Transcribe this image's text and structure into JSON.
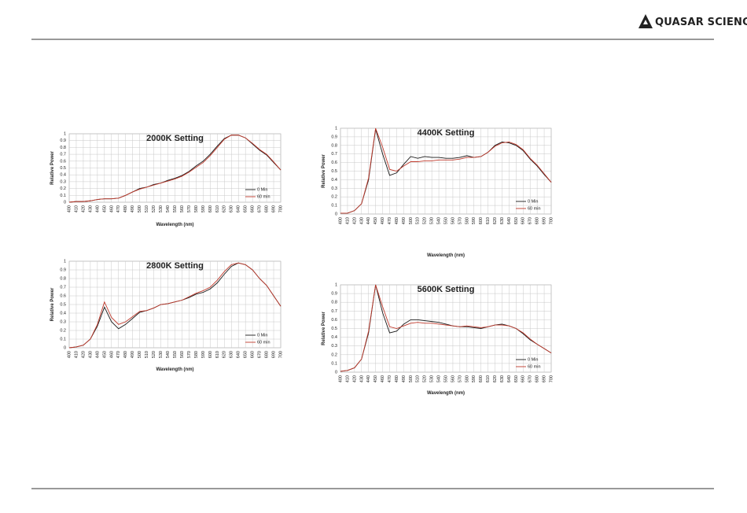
{
  "header": {
    "brand": "QUASAR SCIENCE"
  },
  "chart_data": [
    {
      "type": "line",
      "title": "2000K Setting",
      "y_label": "Relative Power",
      "x_label": "Wavelength (nm)",
      "x": [
        400,
        410,
        420,
        430,
        440,
        450,
        460,
        470,
        480,
        490,
        500,
        510,
        520,
        530,
        540,
        550,
        560,
        570,
        580,
        590,
        600,
        610,
        620,
        630,
        640,
        650,
        660,
        670,
        680,
        690,
        700
      ],
      "xlim": [
        400,
        700
      ],
      "xticks": [
        400,
        410,
        420,
        430,
        440,
        450,
        460,
        470,
        480,
        490,
        500,
        510,
        520,
        530,
        540,
        550,
        560,
        570,
        580,
        590,
        600,
        610,
        620,
        630,
        640,
        650,
        660,
        670,
        680,
        690,
        700
      ],
      "ylim": [
        0,
        1
      ],
      "yticks": [
        0,
        0.1,
        0.2,
        0.3,
        0.4,
        0.5,
        0.6,
        0.7,
        0.8,
        0.9,
        1
      ],
      "grid": true,
      "legend": "lower right",
      "series": [
        {
          "name": "0 Min",
          "color": "#1a1a1a",
          "values": [
            0,
            0.01,
            0.01,
            0.02,
            0.04,
            0.05,
            0.05,
            0.06,
            0.1,
            0.15,
            0.2,
            0.22,
            0.26,
            0.28,
            0.32,
            0.35,
            0.39,
            0.45,
            0.53,
            0.6,
            0.7,
            0.82,
            0.93,
            0.98,
            0.98,
            0.94,
            0.85,
            0.76,
            0.69,
            0.58,
            0.47
          ]
        },
        {
          "name": "60 min",
          "color": "#c0392b",
          "values": [
            0,
            0.01,
            0.01,
            0.02,
            0.04,
            0.05,
            0.05,
            0.06,
            0.1,
            0.15,
            0.19,
            0.22,
            0.25,
            0.28,
            0.31,
            0.34,
            0.38,
            0.44,
            0.51,
            0.58,
            0.68,
            0.8,
            0.92,
            0.98,
            0.98,
            0.94,
            0.86,
            0.77,
            0.7,
            0.59,
            0.47
          ]
        }
      ]
    },
    {
      "type": "line",
      "title": "2800K Setting",
      "y_label": "Relative Power",
      "x_label": "Wavelength (nm)",
      "x": [
        400,
        410,
        420,
        430,
        440,
        450,
        460,
        470,
        480,
        490,
        500,
        510,
        520,
        530,
        540,
        550,
        560,
        570,
        580,
        590,
        600,
        610,
        620,
        630,
        640,
        650,
        660,
        670,
        680,
        690,
        700
      ],
      "xlim": [
        400,
        700
      ],
      "xticks": [
        400,
        410,
        420,
        430,
        440,
        450,
        460,
        470,
        480,
        490,
        500,
        510,
        520,
        530,
        540,
        550,
        560,
        570,
        580,
        590,
        600,
        610,
        620,
        630,
        640,
        650,
        660,
        670,
        680,
        690,
        700
      ],
      "ylim": [
        0,
        1
      ],
      "yticks": [
        0,
        0.1,
        0.2,
        0.3,
        0.4,
        0.5,
        0.6,
        0.7,
        0.8,
        0.9,
        1
      ],
      "grid": true,
      "legend": "lower right",
      "series": [
        {
          "name": "0 Min",
          "color": "#1a1a1a",
          "values": [
            0,
            0.01,
            0.03,
            0.1,
            0.25,
            0.47,
            0.3,
            0.22,
            0.27,
            0.34,
            0.41,
            0.43,
            0.46,
            0.5,
            0.51,
            0.53,
            0.55,
            0.58,
            0.62,
            0.64,
            0.68,
            0.75,
            0.85,
            0.94,
            0.98,
            0.96,
            0.9,
            0.8,
            0.72,
            0.6,
            0.48
          ]
        },
        {
          "name": "60 min",
          "color": "#c0392b",
          "values": [
            0,
            0.01,
            0.03,
            0.1,
            0.27,
            0.53,
            0.35,
            0.27,
            0.3,
            0.36,
            0.42,
            0.43,
            0.46,
            0.5,
            0.51,
            0.53,
            0.55,
            0.59,
            0.63,
            0.66,
            0.7,
            0.78,
            0.88,
            0.96,
            0.98,
            0.96,
            0.9,
            0.8,
            0.72,
            0.6,
            0.48
          ]
        }
      ]
    },
    {
      "type": "line",
      "title": "4400K Setting",
      "y_label": "Relative Power",
      "x_label": "Wavelength (nm)",
      "x": [
        400,
        410,
        420,
        430,
        440,
        450,
        460,
        470,
        480,
        490,
        500,
        510,
        520,
        530,
        540,
        550,
        560,
        570,
        580,
        590,
        600,
        610,
        620,
        630,
        640,
        650,
        660,
        670,
        680,
        690,
        700
      ],
      "xlim": [
        400,
        700
      ],
      "xticks": [
        400,
        410,
        420,
        430,
        440,
        450,
        460,
        470,
        480,
        490,
        500,
        510,
        520,
        530,
        540,
        550,
        560,
        570,
        580,
        590,
        600,
        610,
        620,
        630,
        640,
        650,
        660,
        670,
        680,
        690,
        700
      ],
      "ylim": [
        0,
        1
      ],
      "yticks": [
        0,
        0.1,
        0.2,
        0.3,
        0.4,
        0.5,
        0.6,
        0.7,
        0.8,
        0.9,
        1
      ],
      "grid": true,
      "legend": "lower right",
      "series": [
        {
          "name": "0 Min",
          "color": "#1a1a1a",
          "values": [
            0.01,
            0.01,
            0.04,
            0.12,
            0.4,
            0.99,
            0.7,
            0.45,
            0.48,
            0.58,
            0.67,
            0.65,
            0.67,
            0.66,
            0.66,
            0.65,
            0.65,
            0.66,
            0.68,
            0.66,
            0.67,
            0.72,
            0.8,
            0.84,
            0.83,
            0.8,
            0.74,
            0.64,
            0.56,
            0.46,
            0.37
          ]
        },
        {
          "name": "60 min",
          "color": "#c0392b",
          "values": [
            0.01,
            0.01,
            0.04,
            0.12,
            0.42,
            1,
            0.78,
            0.52,
            0.5,
            0.56,
            0.61,
            0.61,
            0.62,
            0.62,
            0.63,
            0.63,
            0.63,
            0.64,
            0.66,
            0.66,
            0.67,
            0.72,
            0.79,
            0.83,
            0.84,
            0.81,
            0.75,
            0.65,
            0.57,
            0.47,
            0.37
          ]
        }
      ]
    },
    {
      "type": "line",
      "title": "5600K Setting",
      "y_label": "Relative Power",
      "x_label": "Wavelength (nm)",
      "x": [
        400,
        410,
        420,
        430,
        440,
        450,
        460,
        470,
        480,
        490,
        500,
        510,
        520,
        530,
        540,
        550,
        560,
        570,
        580,
        590,
        600,
        610,
        620,
        630,
        640,
        650,
        660,
        670,
        680,
        690,
        700
      ],
      "xlim": [
        400,
        700
      ],
      "xticks": [
        400,
        410,
        420,
        430,
        440,
        450,
        460,
        470,
        480,
        490,
        500,
        510,
        520,
        530,
        540,
        550,
        560,
        570,
        580,
        590,
        600,
        610,
        620,
        630,
        640,
        650,
        660,
        670,
        680,
        690,
        700
      ],
      "ylim": [
        0,
        1
      ],
      "yticks": [
        0,
        0.1,
        0.2,
        0.3,
        0.4,
        0.5,
        0.6,
        0.7,
        0.8,
        0.9,
        1
      ],
      "grid": true,
      "legend": "lower right",
      "series": [
        {
          "name": "0 Min",
          "color": "#1a1a1a",
          "values": [
            0.01,
            0.02,
            0.05,
            0.15,
            0.45,
            1,
            0.68,
            0.45,
            0.47,
            0.55,
            0.6,
            0.6,
            0.59,
            0.58,
            0.57,
            0.55,
            0.53,
            0.52,
            0.52,
            0.51,
            0.5,
            0.52,
            0.54,
            0.55,
            0.53,
            0.5,
            0.44,
            0.37,
            0.32,
            0.27,
            0.22
          ]
        },
        {
          "name": "60 min",
          "color": "#c0392b",
          "values": [
            0.01,
            0.02,
            0.05,
            0.15,
            0.47,
            1,
            0.75,
            0.52,
            0.5,
            0.53,
            0.56,
            0.57,
            0.56,
            0.56,
            0.55,
            0.54,
            0.53,
            0.52,
            0.53,
            0.52,
            0.51,
            0.52,
            0.54,
            0.54,
            0.53,
            0.5,
            0.45,
            0.38,
            0.32,
            0.27,
            0.22
          ]
        }
      ]
    }
  ]
}
